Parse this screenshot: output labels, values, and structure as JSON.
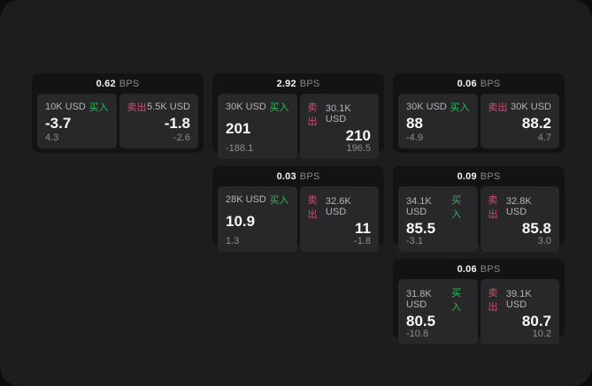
{
  "labels": {
    "bps_unit": "BPS",
    "buy": "买入",
    "sell": "卖出"
  },
  "colors": {
    "buy_green": "#30b857",
    "sell_red": "#d64a6e",
    "window_bg": "#1d1d1f",
    "card_bg": "#131314",
    "panel_bg": "#28282a"
  },
  "cards": [
    {
      "bps": "0.62",
      "buy": {
        "amount": "10K USD",
        "price": "-3.7",
        "delta": "4.3"
      },
      "sell": {
        "amount": "5.5K USD",
        "price": "-1.8",
        "delta": "-2.6"
      }
    },
    {
      "bps": "2.92",
      "buy": {
        "amount": "30K USD",
        "price": "201",
        "delta": "-188.1"
      },
      "sell": {
        "amount": "30.1K USD",
        "price": "210",
        "delta": "196.5"
      }
    },
    {
      "bps": "0.06",
      "buy": {
        "amount": "30K USD",
        "price": "88",
        "delta": "-4.9"
      },
      "sell": {
        "amount": "30K USD",
        "price": "88.2",
        "delta": "4.7"
      }
    },
    {
      "bps": "0.03",
      "buy": {
        "amount": "28K USD",
        "price": "10.9",
        "delta": "1.3"
      },
      "sell": {
        "amount": "32.6K USD",
        "price": "11",
        "delta": "-1.8"
      }
    },
    {
      "bps": "0.09",
      "buy": {
        "amount": "34.1K USD",
        "price": "85.5",
        "delta": "-3.1"
      },
      "sell": {
        "amount": "32.8K USD",
        "price": "85.8",
        "delta": "3.0"
      }
    },
    {
      "bps": "0.06",
      "buy": {
        "amount": "31.8K USD",
        "price": "80.5",
        "delta": "-10.8"
      },
      "sell": {
        "amount": "39.1K USD",
        "price": "80.7",
        "delta": "10.2"
      }
    }
  ]
}
